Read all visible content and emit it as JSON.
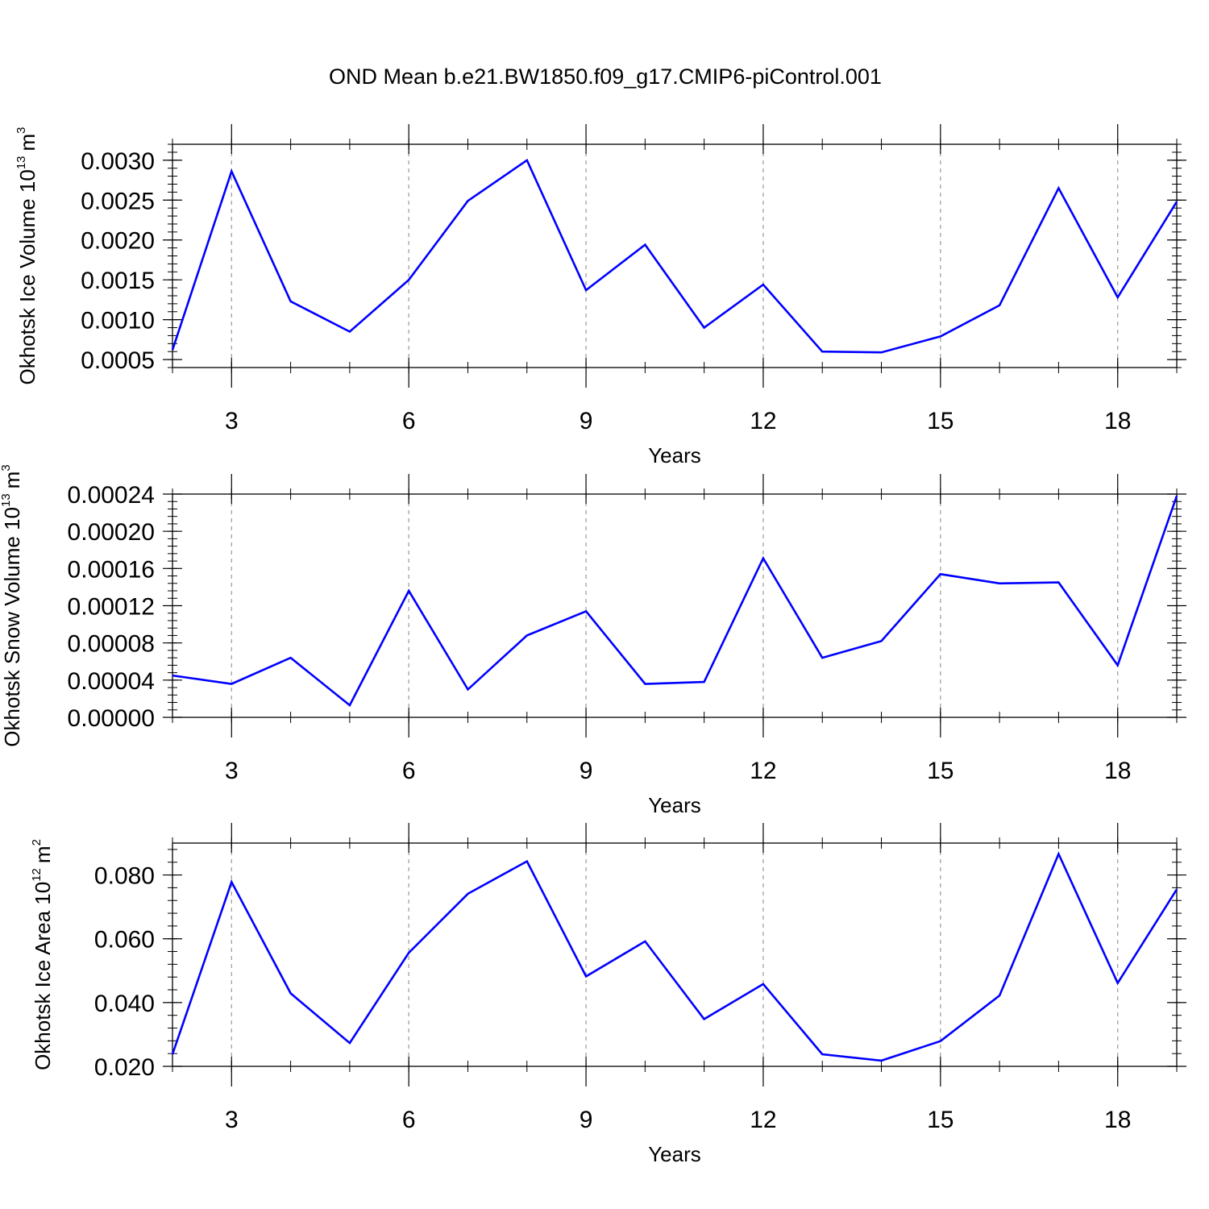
{
  "figure_title": "OND Mean b.e21.BW1850.f09_g17.CMIP6-piControl.001",
  "line_color": "#0000ff",
  "chart_data": [
    {
      "type": "line",
      "ylabel": "Okhotsk Ice Volume 10",
      "ylabel_exp": "13",
      "ylabel_unit": "m",
      "ylabel_unit_exp": "3",
      "xlabel": "Years",
      "xlim": [
        2,
        19
      ],
      "ylim": [
        0.0004,
        0.0032
      ],
      "xticks": [
        3,
        6,
        9,
        12,
        15,
        18
      ],
      "xtick_labels": [
        "3",
        "6",
        "9",
        "12",
        "15",
        "18"
      ],
      "yticks": [
        0.0005,
        0.001,
        0.0015,
        0.002,
        0.0025,
        0.003
      ],
      "ytick_labels": [
        "0.0005",
        "0.0010",
        "0.0015",
        "0.0020",
        "0.0025",
        "0.0030"
      ],
      "grid": "vertical dashed at major x ticks",
      "x": [
        2,
        3,
        4,
        5,
        6,
        7,
        8,
        9,
        10,
        11,
        12,
        13,
        14,
        15,
        16,
        17,
        18,
        19
      ],
      "series": [
        {
          "values": [
            0.00062,
            0.00286,
            0.00123,
            0.00085,
            0.0015,
            0.00249,
            0.003,
            0.00137,
            0.00194,
            0.0009,
            0.00144,
            0.0006,
            0.00059,
            0.00079,
            0.00118,
            0.00265,
            0.00128,
            0.00248
          ]
        }
      ]
    },
    {
      "type": "line",
      "ylabel": "Okhotsk Snow Volume 10",
      "ylabel_exp": "13",
      "ylabel_unit": "m",
      "ylabel_unit_exp": "3",
      "xlabel": "Years",
      "xlim": [
        2,
        19
      ],
      "ylim": [
        0,
        0.00024
      ],
      "xticks": [
        3,
        6,
        9,
        12,
        15,
        18
      ],
      "xtick_labels": [
        "3",
        "6",
        "9",
        "12",
        "15",
        "18"
      ],
      "yticks": [
        0,
        4e-05,
        8e-05,
        0.00012,
        0.00016,
        0.0002,
        0.00024
      ],
      "ytick_labels": [
        "0.00000",
        "0.00004",
        "0.00008",
        "0.00012",
        "0.00016",
        "0.00020",
        "0.00024"
      ],
      "grid": "vertical dashed at major x ticks",
      "x": [
        2,
        3,
        4,
        5,
        6,
        7,
        8,
        9,
        10,
        11,
        12,
        13,
        14,
        15,
        16,
        17,
        18,
        19
      ],
      "series": [
        {
          "values": [
            4.5e-05,
            3.6e-05,
            6.4e-05,
            1.3e-05,
            0.000136,
            3e-05,
            8.8e-05,
            0.000114,
            3.6e-05,
            3.8e-05,
            0.000171,
            6.4e-05,
            8.2e-05,
            0.000154,
            0.000144,
            0.000145,
            5.6e-05,
            0.000238
          ]
        }
      ]
    },
    {
      "type": "line",
      "ylabel": "Okhotsk Ice Area 10",
      "ylabel_exp": "12",
      "ylabel_unit": "m",
      "ylabel_unit_exp": "2",
      "xlabel": "Years",
      "xlim": [
        2,
        19
      ],
      "ylim": [
        0.02,
        0.09
      ],
      "xticks": [
        3,
        6,
        9,
        12,
        15,
        18
      ],
      "xtick_labels": [
        "3",
        "6",
        "9",
        "12",
        "15",
        "18"
      ],
      "yticks": [
        0.02,
        0.04,
        0.06,
        0.08
      ],
      "ytick_labels": [
        "0.020",
        "0.040",
        "0.060",
        "0.080"
      ],
      "grid": "vertical dashed at major x ticks",
      "x": [
        2,
        3,
        4,
        5,
        6,
        7,
        8,
        9,
        10,
        11,
        12,
        13,
        14,
        15,
        16,
        17,
        18,
        19
      ],
      "series": [
        {
          "values": [
            0.0238,
            0.0778,
            0.0429,
            0.0273,
            0.0556,
            0.0741,
            0.0843,
            0.0482,
            0.0592,
            0.0348,
            0.0458,
            0.0238,
            0.0218,
            0.0279,
            0.0422,
            0.0866,
            0.0461,
            0.0755
          ]
        }
      ]
    }
  ]
}
